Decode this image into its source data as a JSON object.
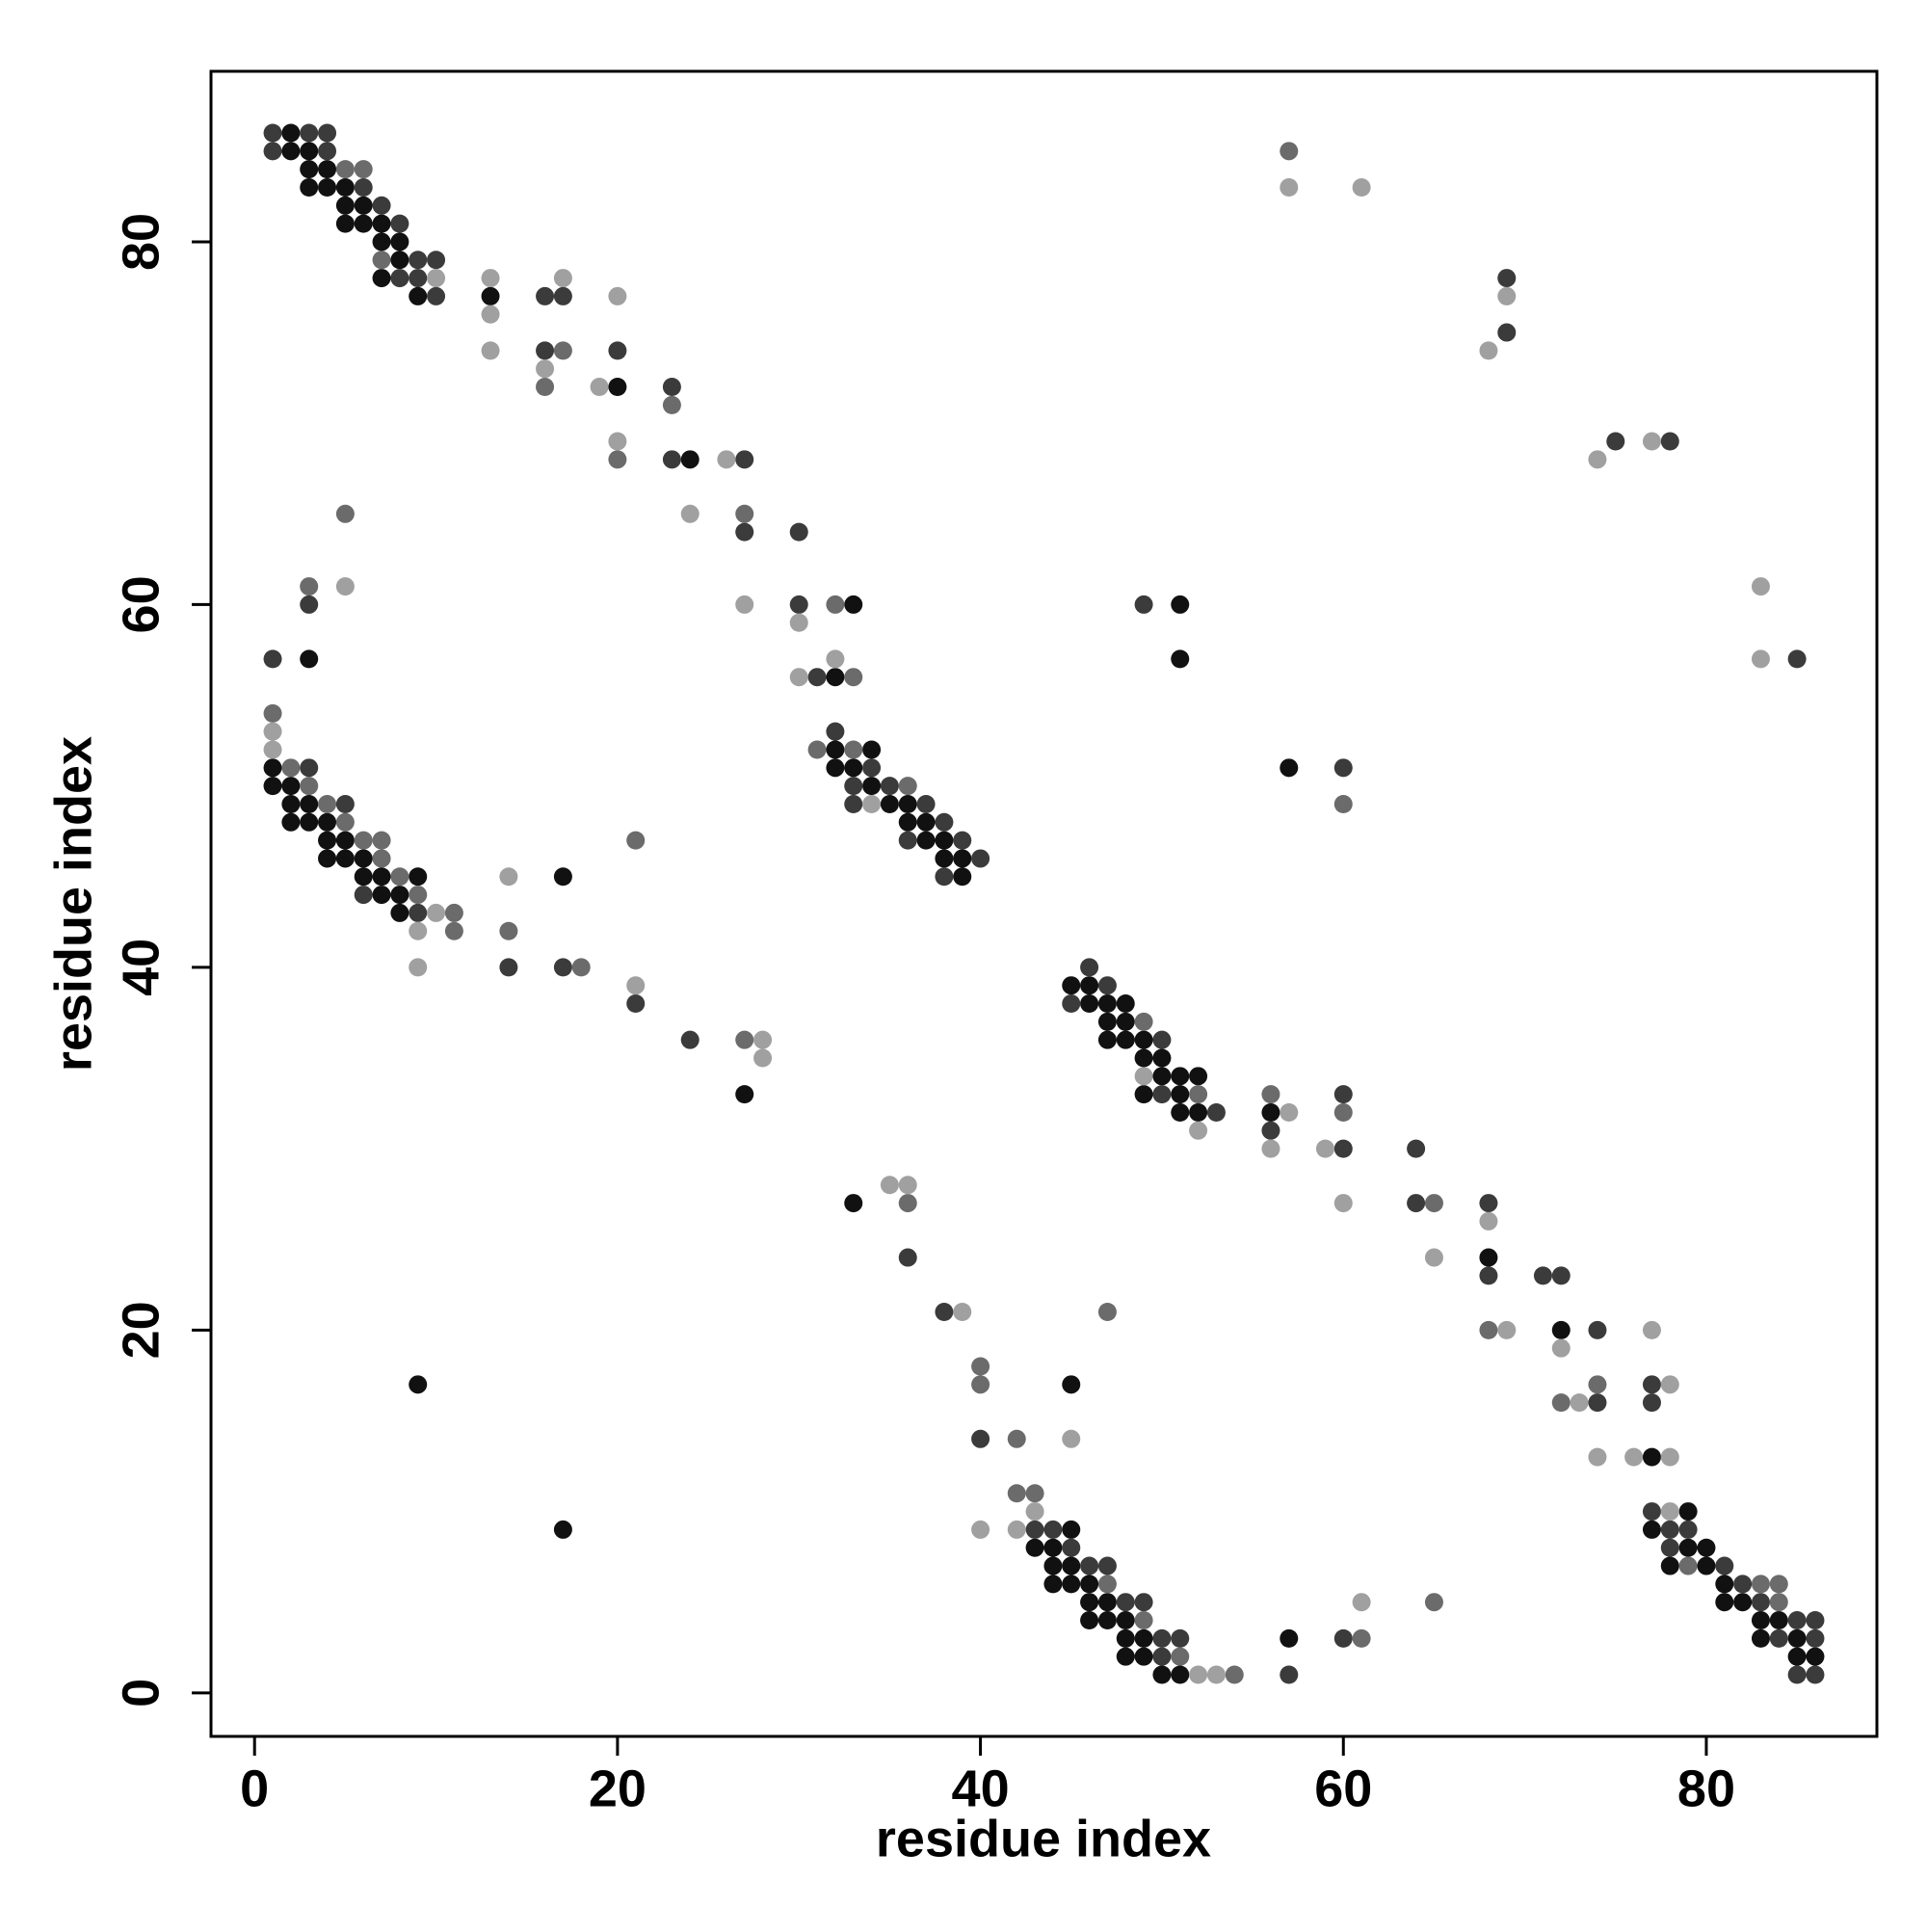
{
  "chart_data": {
    "type": "scatter",
    "x_label": "residue index",
    "y_label": "residue index",
    "xlim": [
      -2.4,
      89.4
    ],
    "ylim": [
      -2.4,
      89.4
    ],
    "xticks": [
      0,
      20,
      40,
      60,
      80
    ],
    "yticks": [
      0,
      20,
      40,
      60,
      80
    ],
    "series": [
      {
        "color": "#111111",
        "x": [
          2,
          2,
          3,
          3,
          4,
          3,
          4,
          5,
          5,
          6,
          5,
          6,
          7,
          7,
          8,
          8,
          7,
          9,
          13,
          20,
          24,
          33,
          51,
          3,
          51,
          32,
          32,
          34,
          1,
          32,
          33,
          57,
          1,
          2,
          34,
          2,
          3,
          35,
          36,
          2,
          3,
          4,
          36,
          37,
          4,
          5,
          37,
          38,
          4,
          5,
          6,
          38,
          39,
          6,
          7,
          9,
          17,
          39,
          7,
          8,
          8,
          45,
          46,
          46,
          47,
          48,
          47,
          48,
          47,
          48,
          49,
          49,
          50,
          50,
          51,
          52,
          27,
          49,
          51,
          51,
          52,
          56,
          33,
          68,
          72,
          9,
          45,
          77,
          79,
          17,
          45,
          77,
          43,
          44,
          79,
          80,
          44,
          45,
          78,
          80,
          44,
          45,
          46,
          81,
          46,
          47,
          81,
          82,
          46,
          47,
          48,
          83,
          84,
          48,
          49,
          57,
          83,
          85,
          48,
          49,
          85,
          86,
          50,
          51
        ],
        "values": [
          86,
          85,
          85,
          84,
          84,
          83,
          83,
          83,
          82,
          82,
          81,
          81,
          81,
          80,
          80,
          79,
          78,
          77,
          77,
          72,
          68,
          60,
          60,
          57,
          57,
          56,
          52,
          52,
          51,
          51,
          51,
          51,
          50,
          50,
          50,
          49,
          49,
          49,
          49,
          48,
          48,
          48,
          48,
          48,
          47,
          47,
          47,
          47,
          46,
          46,
          46,
          46,
          46,
          45,
          45,
          45,
          45,
          45,
          44,
          44,
          43,
          39,
          39,
          38,
          38,
          38,
          37,
          37,
          36,
          36,
          36,
          35,
          35,
          34,
          34,
          34,
          33,
          33,
          33,
          32,
          32,
          32,
          27,
          24,
          20,
          17,
          17,
          13,
          10,
          9,
          9,
          9,
          8,
          8,
          8,
          8,
          7,
          7,
          7,
          7,
          6,
          6,
          6,
          6,
          5,
          5,
          5,
          5,
          4,
          4,
          4,
          4,
          4,
          3,
          3,
          3,
          3,
          3,
          2,
          2,
          2,
          2,
          1,
          1
        ]
      },
      {
        "color": "#3b3b3b",
        "x": [
          1,
          3,
          4,
          1,
          4,
          6,
          7,
          8,
          9,
          10,
          8,
          9,
          69,
          10,
          16,
          17,
          69,
          16,
          20,
          23,
          75,
          78,
          23,
          27,
          27,
          30,
          3,
          30,
          49,
          1,
          85,
          31,
          32,
          3,
          34,
          60,
          33,
          35,
          5,
          33,
          37,
          38,
          36,
          39,
          40,
          38,
          6,
          9,
          14,
          17,
          46,
          47,
          21,
          45,
          24,
          50,
          50,
          60,
          53,
          56,
          60,
          64,
          64,
          68,
          36,
          68,
          71,
          72,
          38,
          74,
          77,
          74,
          77,
          40,
          77,
          43,
          44,
          78,
          79,
          45,
          78,
          46,
          47,
          81,
          82,
          48,
          49,
          83,
          85,
          86,
          50,
          51,
          60,
          84,
          86,
          50,
          57,
          85,
          86
        ],
        "values": [
          86,
          86,
          86,
          85,
          85,
          83,
          82,
          81,
          79,
          79,
          78,
          78,
          78,
          77,
          77,
          77,
          75,
          74,
          74,
          72,
          69,
          69,
          68,
          68,
          64,
          64,
          60,
          60,
          60,
          57,
          57,
          56,
          53,
          51,
          51,
          51,
          50,
          50,
          49,
          49,
          49,
          48,
          47,
          47,
          46,
          45,
          44,
          43,
          40,
          40,
          40,
          39,
          38,
          38,
          36,
          36,
          33,
          33,
          32,
          31,
          30,
          30,
          27,
          27,
          24,
          23,
          23,
          23,
          21,
          20,
          17,
          16,
          16,
          14,
          10,
          9,
          9,
          9,
          9,
          8,
          8,
          7,
          7,
          7,
          6,
          5,
          5,
          5,
          4,
          4,
          3,
          3,
          3,
          3,
          3,
          2,
          1,
          1,
          1
        ]
      },
      {
        "color": "#6b6b6b",
        "x": [
          57,
          5,
          6,
          7,
          17,
          16,
          23,
          20,
          5,
          27,
          3,
          32,
          33,
          1,
          31,
          33,
          2,
          3,
          36,
          4,
          60,
          5,
          6,
          7,
          21,
          7,
          8,
          9,
          11,
          11,
          14,
          18,
          49,
          27,
          52,
          56,
          60,
          36,
          65,
          47,
          68,
          40,
          40,
          74,
          72,
          42,
          42,
          43,
          79,
          47,
          83,
          84,
          65,
          84,
          49,
          61,
          51,
          54
        ],
        "values": [
          85,
          84,
          84,
          79,
          74,
          72,
          71,
          68,
          65,
          65,
          61,
          60,
          56,
          54,
          52,
          52,
          51,
          50,
          50,
          49,
          49,
          48,
          47,
          47,
          47,
          46,
          45,
          44,
          43,
          42,
          42,
          40,
          37,
          36,
          33,
          33,
          32,
          27,
          27,
          21,
          20,
          18,
          17,
          17,
          16,
          14,
          11,
          11,
          7,
          6,
          6,
          6,
          5,
          5,
          4,
          3,
          2,
          1
        ]
      },
      {
        "color": "#a0a0a0",
        "x": [
          57,
          61,
          10,
          13,
          17,
          20,
          69,
          13,
          13,
          68,
          16,
          19,
          20,
          77,
          26,
          74,
          24,
          5,
          83,
          27,
          30,
          32,
          83,
          30,
          1,
          1,
          34,
          14,
          10,
          9,
          9,
          21,
          28,
          28,
          49,
          57,
          52,
          56,
          59,
          35,
          36,
          60,
          68,
          65,
          39,
          69,
          77,
          72,
          78,
          73,
          45,
          74,
          76,
          78,
          43,
          78,
          40,
          42,
          61,
          52,
          53
        ],
        "values": [
          83,
          83,
          78,
          78,
          78,
          77,
          77,
          76,
          74,
          74,
          73,
          72,
          69,
          69,
          68,
          68,
          65,
          61,
          61,
          60,
          59,
          57,
          57,
          56,
          53,
          52,
          49,
          45,
          43,
          42,
          40,
          39,
          36,
          35,
          34,
          32,
          31,
          30,
          30,
          28,
          28,
          27,
          26,
          24,
          21,
          20,
          20,
          19,
          17,
          16,
          14,
          13,
          13,
          13,
          10,
          10,
          9,
          9,
          5,
          1,
          1
        ]
      }
    ]
  }
}
